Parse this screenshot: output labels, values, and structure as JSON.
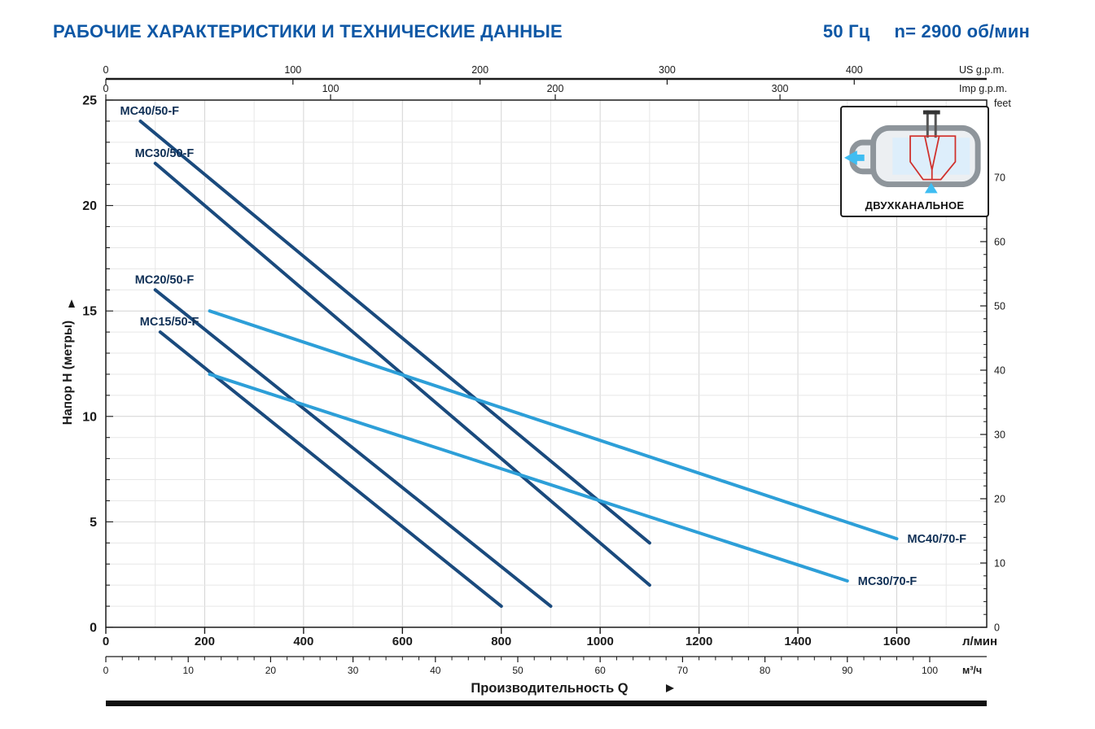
{
  "header": {
    "title": "РАБОЧИЕ ХАРАКТЕРИСТИКИ И ТЕХНИЧЕСКИЕ ДАННЫЕ",
    "frequency": "50 Гц",
    "speed": "n= 2900 об/мин"
  },
  "inset": {
    "label": "ДВУХКАНАЛЬНОЕ"
  },
  "colors": {
    "title_blue": "#0d57a5",
    "dark_curve": "#1a4a7d",
    "light_curve": "#2d9fd8",
    "curve_label": "#0f2f55",
    "grid_minor": "#e7e7e7",
    "grid_major": "#d4d4d4",
    "axis_black": "#1a1a1a",
    "inset_red": "#d0312d",
    "inset_cyan": "#3fbdf2",
    "inset_gray": "#8e959b"
  },
  "chart_data": {
    "type": "line",
    "title": "РАБОЧИЕ ХАРАКТЕРИСТИКИ И ТЕХНИЧЕСКИЕ ДАННЫЕ",
    "subtitle": "50 Гц  n= 2900 об/мин",
    "units": {
      "q": "л/мин",
      "h": "м"
    },
    "xlabel": "Производительность Q",
    "grid": true,
    "legend": "labels-on-curves",
    "x_axes": {
      "lpm": {
        "label": "л/мин",
        "min": 0,
        "max": 1782,
        "ticks": [
          0,
          200,
          400,
          600,
          800,
          1000,
          1200,
          1400,
          1600
        ]
      },
      "m3h": {
        "label": "м³/ч",
        "ticks": [
          0,
          10,
          20,
          30,
          40,
          50,
          60,
          70,
          80,
          90,
          100
        ],
        "lpm_per_unit": 16.667
      },
      "us_gpm": {
        "label": "US g.p.m.",
        "ticks": [
          0,
          100,
          200,
          300,
          400
        ],
        "lpm_per_unit": 3.785
      },
      "imp_gpm": {
        "label": "Imp g.p.m.",
        "ticks": [
          0,
          100,
          200,
          300
        ],
        "lpm_per_unit": 4.546
      }
    },
    "y_axes": {
      "meters": {
        "label": "Напор H (метры)",
        "min": 0,
        "max": 25,
        "ticks": [
          0,
          5,
          10,
          15,
          20,
          25
        ],
        "minor_step": 1
      },
      "feet": {
        "label": "feet",
        "ticks": [
          0,
          10,
          20,
          30,
          40,
          50,
          60,
          70
        ],
        "meters_per_unit": 0.3048
      }
    },
    "series": [
      {
        "name": "MC40/50-F",
        "color_key": "dark",
        "label_side": "start",
        "points": [
          [
            70,
            24
          ],
          [
            1100,
            4
          ]
        ]
      },
      {
        "name": "MC30/50-F",
        "color_key": "dark",
        "label_side": "start",
        "points": [
          [
            100,
            22
          ],
          [
            1100,
            2
          ]
        ]
      },
      {
        "name": "MC20/50-F",
        "color_key": "dark",
        "label_side": "start",
        "points": [
          [
            100,
            16
          ],
          [
            900,
            1
          ]
        ]
      },
      {
        "name": "MC15/50-F",
        "color_key": "dark",
        "label_side": "start",
        "points": [
          [
            110,
            14
          ],
          [
            800,
            1
          ]
        ]
      },
      {
        "name": "MC40/70-F",
        "color_key": "light",
        "label_side": "end",
        "points": [
          [
            210,
            15
          ],
          [
            1600,
            4.2
          ]
        ]
      },
      {
        "name": "MC30/70-F",
        "color_key": "light",
        "label_side": "end",
        "points": [
          [
            210,
            12
          ],
          [
            1500,
            2.2
          ]
        ]
      }
    ]
  }
}
